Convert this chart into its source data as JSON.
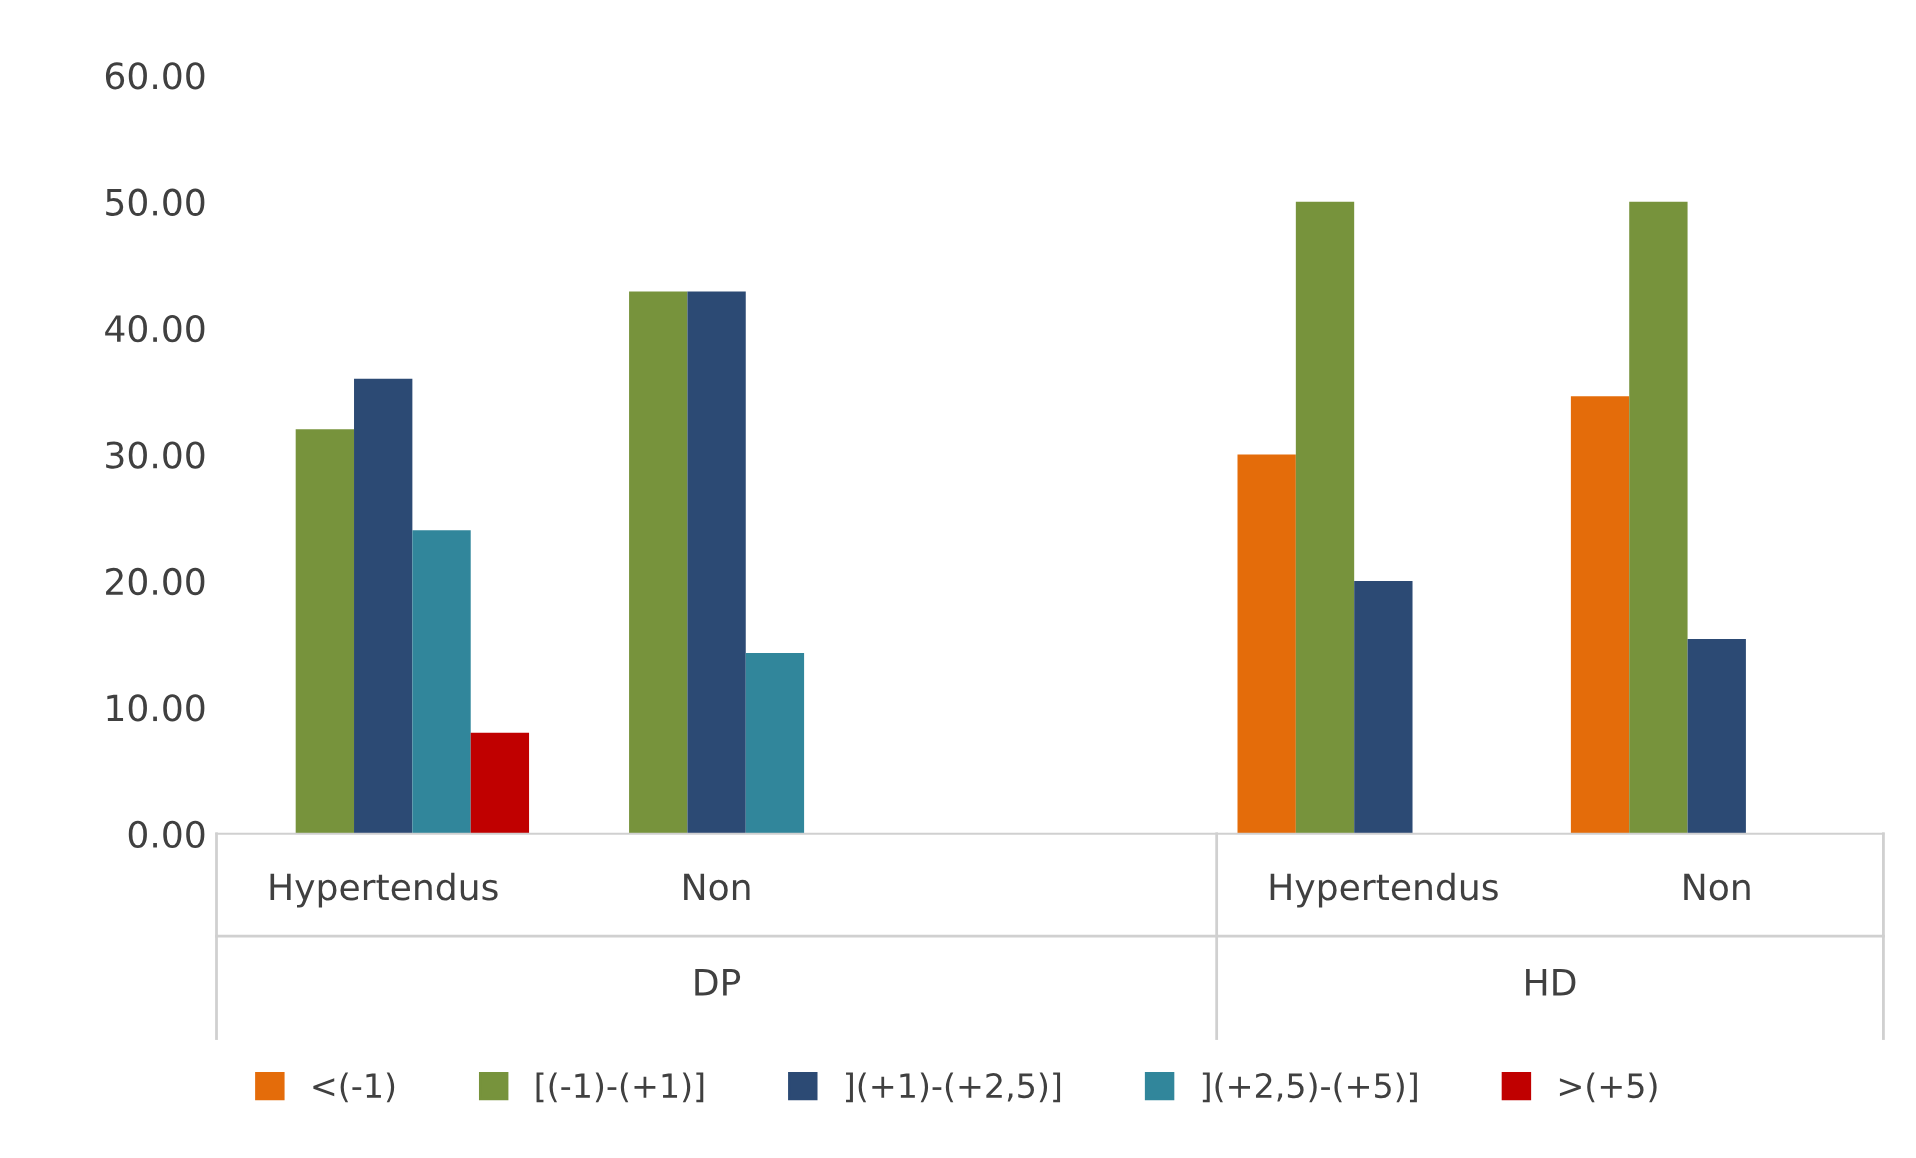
{
  "chart_data": {
    "type": "bar",
    "categories": [
      "Hypertendus",
      "Non",
      null,
      "Hypertendus",
      "Non"
    ],
    "series": [
      {
        "name": "<(-1)",
        "color": "#e46c0a",
        "values": [
          null,
          null,
          null,
          30,
          34.6
        ]
      },
      {
        "name": "[(-1)-(+1)]",
        "color": "#77933c",
        "values": [
          32,
          42.9,
          null,
          50,
          50
        ]
      },
      {
        "name": "](+1)-(+2,5)]",
        "color": "#2c4a74",
        "values": [
          36,
          42.9,
          null,
          20,
          15.4
        ]
      },
      {
        "name": "](+2,5)-(+5)]",
        "color": "#31869b",
        "values": [
          24,
          14.3,
          null,
          null,
          null
        ]
      },
      {
        "name": ">(+5)",
        "color": "#c00000",
        "values": [
          8,
          null,
          null,
          null,
          null
        ]
      }
    ],
    "annotations": [
      "DP",
      "HD"
    ],
    "ylim": [
      0,
      60
    ],
    "yticks": [
      {
        "value": 0,
        "label": "0.00"
      },
      {
        "value": 10,
        "label": "10.00"
      },
      {
        "value": 20,
        "label": "20.00"
      },
      {
        "value": 30,
        "label": "30.00"
      },
      {
        "value": 40,
        "label": "40.00"
      },
      {
        "value": 50,
        "label": "50.00"
      },
      {
        "value": 60,
        "label": "60.00"
      }
    ],
    "grid": false,
    "legend": "bottom"
  }
}
